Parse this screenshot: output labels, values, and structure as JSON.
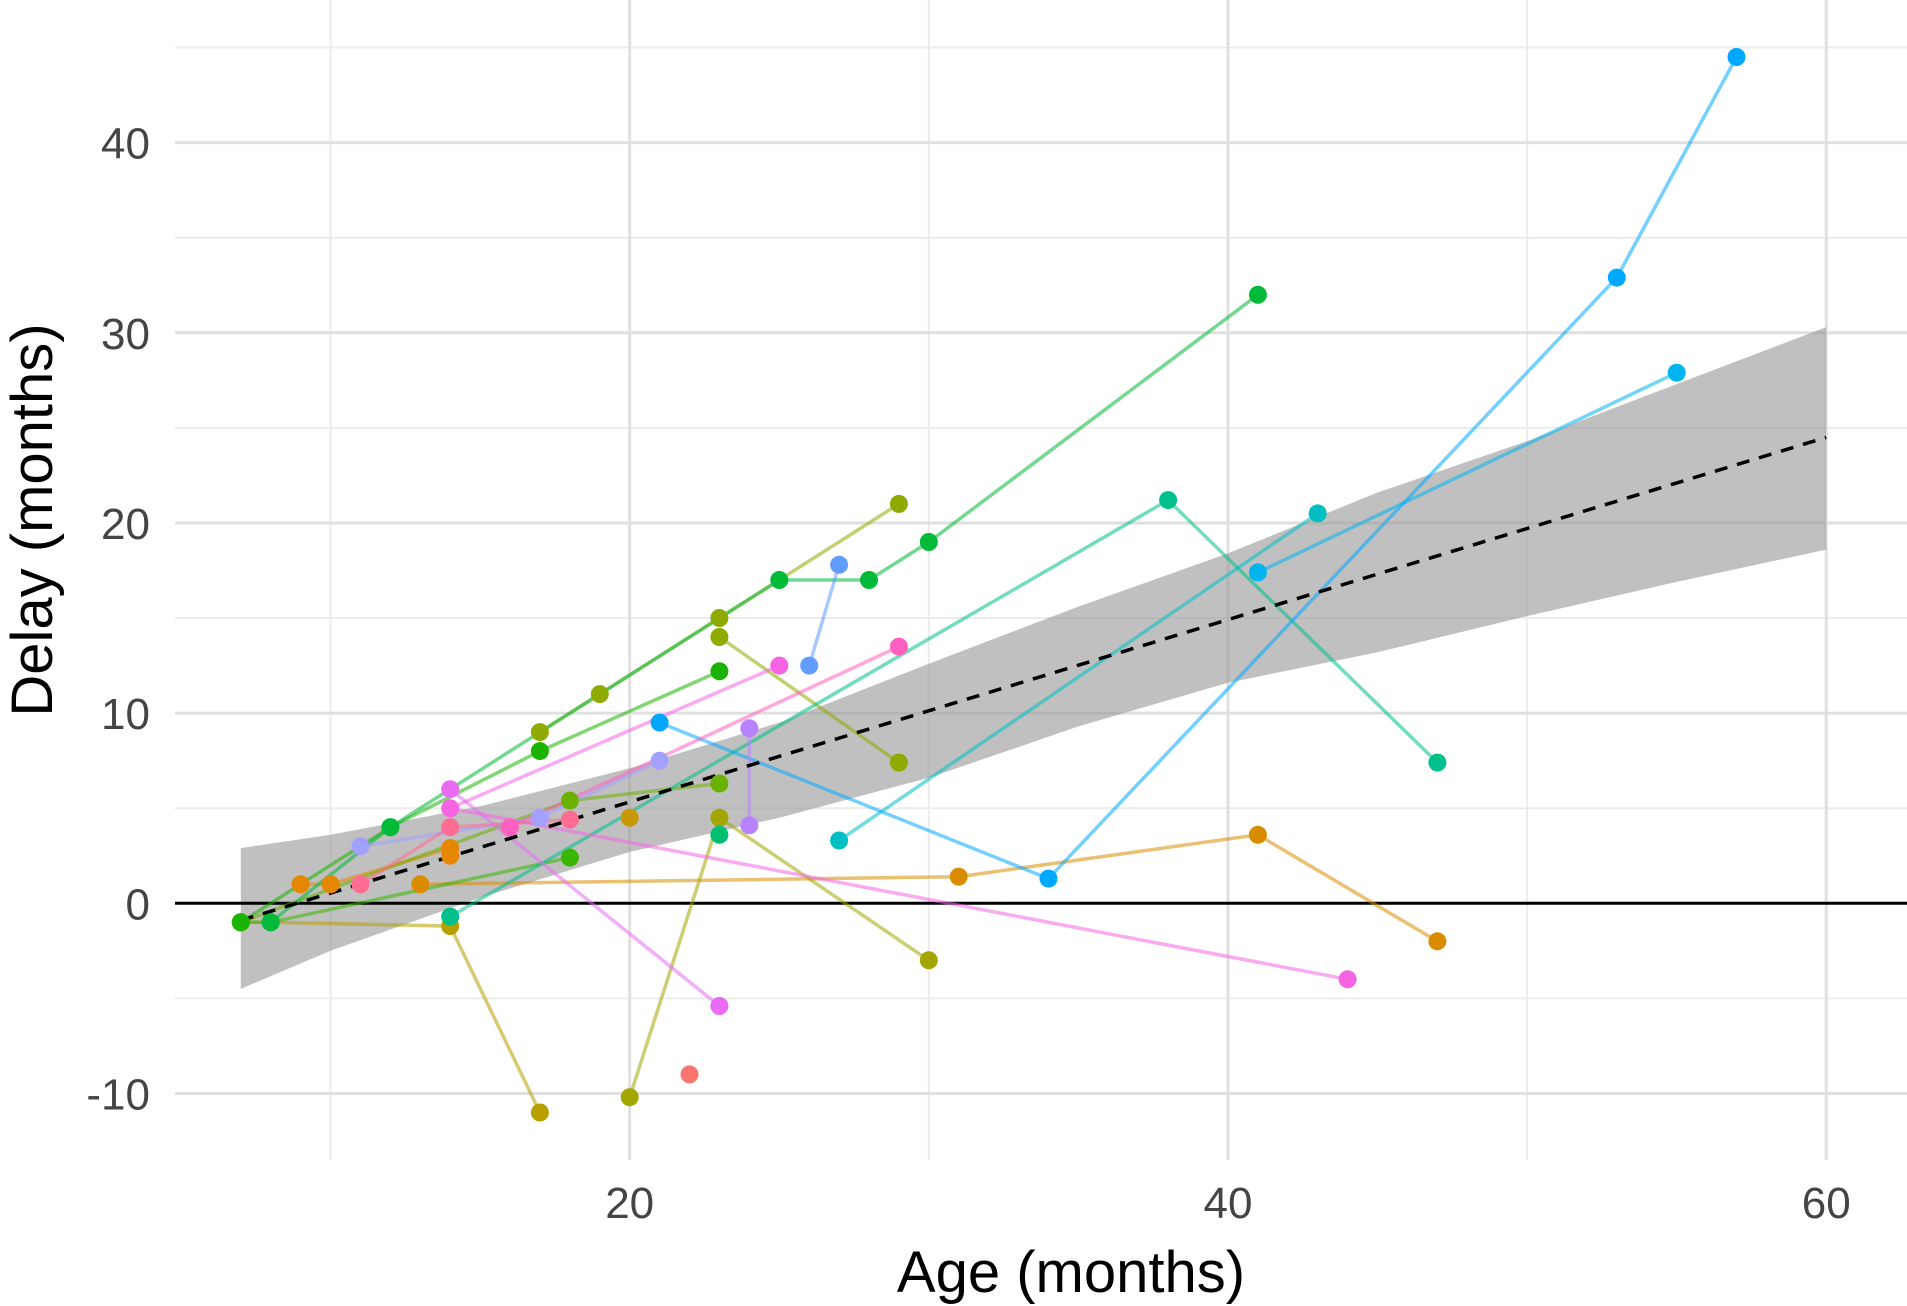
{
  "chart_data": {
    "type": "scatter",
    "title": "",
    "xlabel": "Age (months)",
    "ylabel": "Delay (months)",
    "xlim": [
      4.8,
      62.7
    ],
    "ylim": [
      -13.5,
      47.5
    ],
    "xticks": [
      20,
      40,
      60
    ],
    "xtick_labels": [
      "20",
      "40",
      "60"
    ],
    "yticks": [
      -10,
      0,
      10,
      20,
      30,
      40
    ],
    "ytick_labels": [
      "-10",
      "0",
      "10",
      "20",
      "30",
      "40"
    ],
    "x_minor_ticks": [
      10,
      30,
      50
    ],
    "y_minor_ticks": [
      -5,
      5,
      15,
      25,
      35,
      45
    ],
    "grid": true,
    "legend": "none",
    "reference_line": {
      "y": 0,
      "color": "#000000"
    },
    "trend_line": {
      "style": "dashed",
      "color": "#000000",
      "x": [
        7,
        60
      ],
      "y": [
        -0.9,
        24.5
      ]
    },
    "confidence_band": {
      "color": "#999999",
      "x": [
        7,
        10,
        15,
        20,
        25,
        30,
        35,
        40,
        45,
        50,
        55,
        60
      ],
      "lower": [
        -4.5,
        -2.5,
        0.3,
        2.7,
        4.5,
        6.6,
        9.3,
        11.6,
        13.2,
        15.1,
        16.9,
        18.6
      ],
      "upper": [
        2.9,
        3.6,
        5.1,
        7.1,
        9.5,
        12.6,
        15.6,
        18.4,
        21.6,
        24.3,
        27.3,
        30.3
      ]
    },
    "series": [
      {
        "color": "#F8766D",
        "points": [
          [
            22,
            -9
          ]
        ]
      },
      {
        "color": "#E58700",
        "points": [
          [
            9,
            1
          ],
          [
            10,
            1
          ],
          [
            14,
            2.9
          ],
          [
            14,
            2.5
          ]
        ]
      },
      {
        "color": "#D98C00",
        "points": [
          [
            13,
            1
          ],
          [
            31,
            1.4
          ],
          [
            41,
            3.6
          ],
          [
            47,
            -2
          ]
        ]
      },
      {
        "color": "#C99800",
        "points": [
          [
            20,
            4.5
          ]
        ]
      },
      {
        "color": "#B79F00",
        "points": [
          [
            17,
            -11
          ],
          [
            14,
            -1.2
          ],
          [
            8,
            -1
          ],
          [
            7,
            -1
          ]
        ]
      },
      {
        "color": "#A3A500",
        "points": [
          [
            20,
            -10.2
          ],
          [
            23,
            4.5
          ],
          [
            30,
            -3
          ]
        ]
      },
      {
        "color": "#8FAA00",
        "points": [
          [
            17,
            9
          ],
          [
            19,
            11
          ],
          [
            23,
            15
          ],
          [
            29,
            21
          ]
        ]
      },
      {
        "color": "#8FAA00",
        "points": [
          [
            23,
            14
          ],
          [
            29,
            7.4
          ]
        ]
      },
      {
        "color": "#6BB100",
        "points": [
          [
            7,
            -1
          ],
          [
            18,
            5.4
          ],
          [
            23,
            6.3
          ]
        ]
      },
      {
        "color": "#39B600",
        "points": [
          [
            7,
            -1
          ],
          [
            8,
            -1
          ],
          [
            18,
            2.4
          ]
        ]
      },
      {
        "color": "#1AB300",
        "points": [
          [
            7,
            -1
          ],
          [
            12,
            4
          ],
          [
            17,
            8
          ],
          [
            23,
            12.2
          ]
        ]
      },
      {
        "color": "#00BA38",
        "points": [
          [
            8,
            -1
          ],
          [
            12,
            4
          ],
          [
            25,
            17
          ],
          [
            28,
            17
          ],
          [
            30,
            19
          ],
          [
            41,
            32
          ]
        ]
      },
      {
        "color": "#00BF74",
        "points": [
          [
            23,
            3.6
          ]
        ]
      },
      {
        "color": "#00C08B",
        "points": [
          [
            14,
            -0.7
          ],
          [
            38,
            21.2
          ],
          [
            47,
            7.4
          ]
        ]
      },
      {
        "color": "#00BFC4",
        "points": [
          [
            27,
            3.3
          ],
          [
            43,
            20.5
          ]
        ]
      },
      {
        "color": "#00B4F0",
        "points": [
          [
            41,
            17.4
          ],
          [
            55,
            27.9
          ]
        ]
      },
      {
        "color": "#00A9FF",
        "points": [
          [
            21,
            9.5
          ],
          [
            34,
            1.3
          ],
          [
            53,
            32.9
          ],
          [
            57,
            44.5
          ]
        ]
      },
      {
        "color": "#619CFF",
        "points": [
          [
            26,
            12.5
          ],
          [
            27,
            17.8
          ]
        ]
      },
      {
        "color": "#A3A0FF",
        "points": [
          [
            11,
            3
          ],
          [
            17,
            4.5
          ],
          [
            21,
            7.5
          ]
        ]
      },
      {
        "color": "#B983FF",
        "points": [
          [
            24,
            9.2
          ],
          [
            24,
            4.1
          ]
        ]
      },
      {
        "color": "#E76BF3",
        "points": [
          [
            23,
            -5.4
          ],
          [
            14,
            6
          ]
        ]
      },
      {
        "color": "#F564E3",
        "points": [
          [
            25,
            12.5
          ],
          [
            14,
            5
          ],
          [
            44,
            -4
          ]
        ]
      },
      {
        "color": "#FF61C3",
        "points": [
          [
            29,
            13.5
          ],
          [
            16,
            4
          ]
        ]
      },
      {
        "color": "#FF6C91",
        "points": [
          [
            11,
            1
          ],
          [
            14,
            4
          ],
          [
            18,
            4.4
          ]
        ]
      }
    ]
  }
}
